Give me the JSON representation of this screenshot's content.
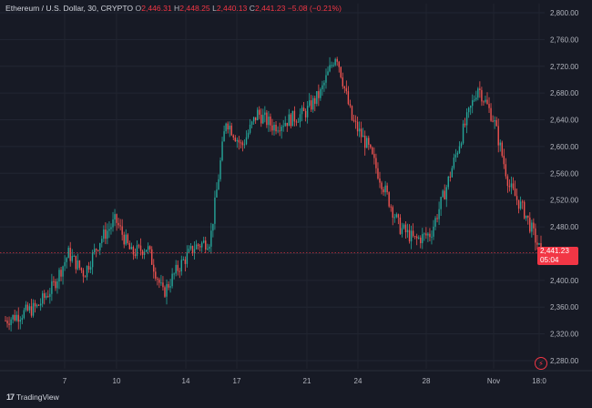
{
  "legend": {
    "symbol": "Ethereum / U.S. Dollar, 30, CRYPTO",
    "open_label": "O",
    "open": "2,446.31",
    "high_label": "H",
    "high": "2,448.25",
    "low_label": "L",
    "low": "2,440.13",
    "close_label": "C",
    "close": "2,441.23",
    "change": "−5.08 (−0.21%)"
  },
  "last_price": {
    "value": "2,441.23",
    "countdown": "05:04"
  },
  "branding": {
    "logo_mark": "17",
    "name": "TradingView"
  },
  "colors": {
    "background": "#171a25",
    "up": "#26a69a",
    "down": "#ef5350",
    "price_line": "#f23645"
  },
  "chart_data": {
    "type": "candlestick",
    "y_ticks": [
      "2,280.00",
      "2,320.00",
      "2,360.00",
      "2,400.00",
      "2,440.00",
      "2,480.00",
      "2,520.00",
      "2,560.00",
      "2,600.00",
      "2,640.00",
      "2,680.00",
      "2,720.00",
      "2,760.00",
      "2,800.00"
    ],
    "ylim": [
      2270,
      2810
    ],
    "x_ticks": [
      "7",
      "10",
      "14",
      "17",
      "21",
      "24",
      "28",
      "Nov",
      "18:0"
    ],
    "last": 2441.23,
    "path": [
      [
        0,
        2340
      ],
      [
        2,
        2360
      ],
      [
        3,
        2390
      ],
      [
        4,
        2440
      ],
      [
        5,
        2410
      ],
      [
        6,
        2460
      ],
      [
        7,
        2490
      ],
      [
        8,
        2440
      ],
      [
        9,
        2450
      ],
      [
        10,
        2380
      ],
      [
        11,
        2420
      ],
      [
        12,
        2450
      ],
      [
        13,
        2460
      ],
      [
        14,
        2640
      ],
      [
        15,
        2600
      ],
      [
        16,
        2650
      ],
      [
        17,
        2630
      ],
      [
        18,
        2640
      ],
      [
        19,
        2650
      ],
      [
        20,
        2680
      ],
      [
        21,
        2740
      ],
      [
        22,
        2640
      ],
      [
        23,
        2600
      ],
      [
        24,
        2540
      ],
      [
        25,
        2480
      ],
      [
        26,
        2460
      ],
      [
        27,
        2470
      ],
      [
        28,
        2540
      ],
      [
        29,
        2620
      ],
      [
        30,
        2690
      ],
      [
        31,
        2640
      ],
      [
        32,
        2540
      ],
      [
        33,
        2500
      ],
      [
        34,
        2441
      ]
    ],
    "grid": true,
    "price_line": true
  }
}
